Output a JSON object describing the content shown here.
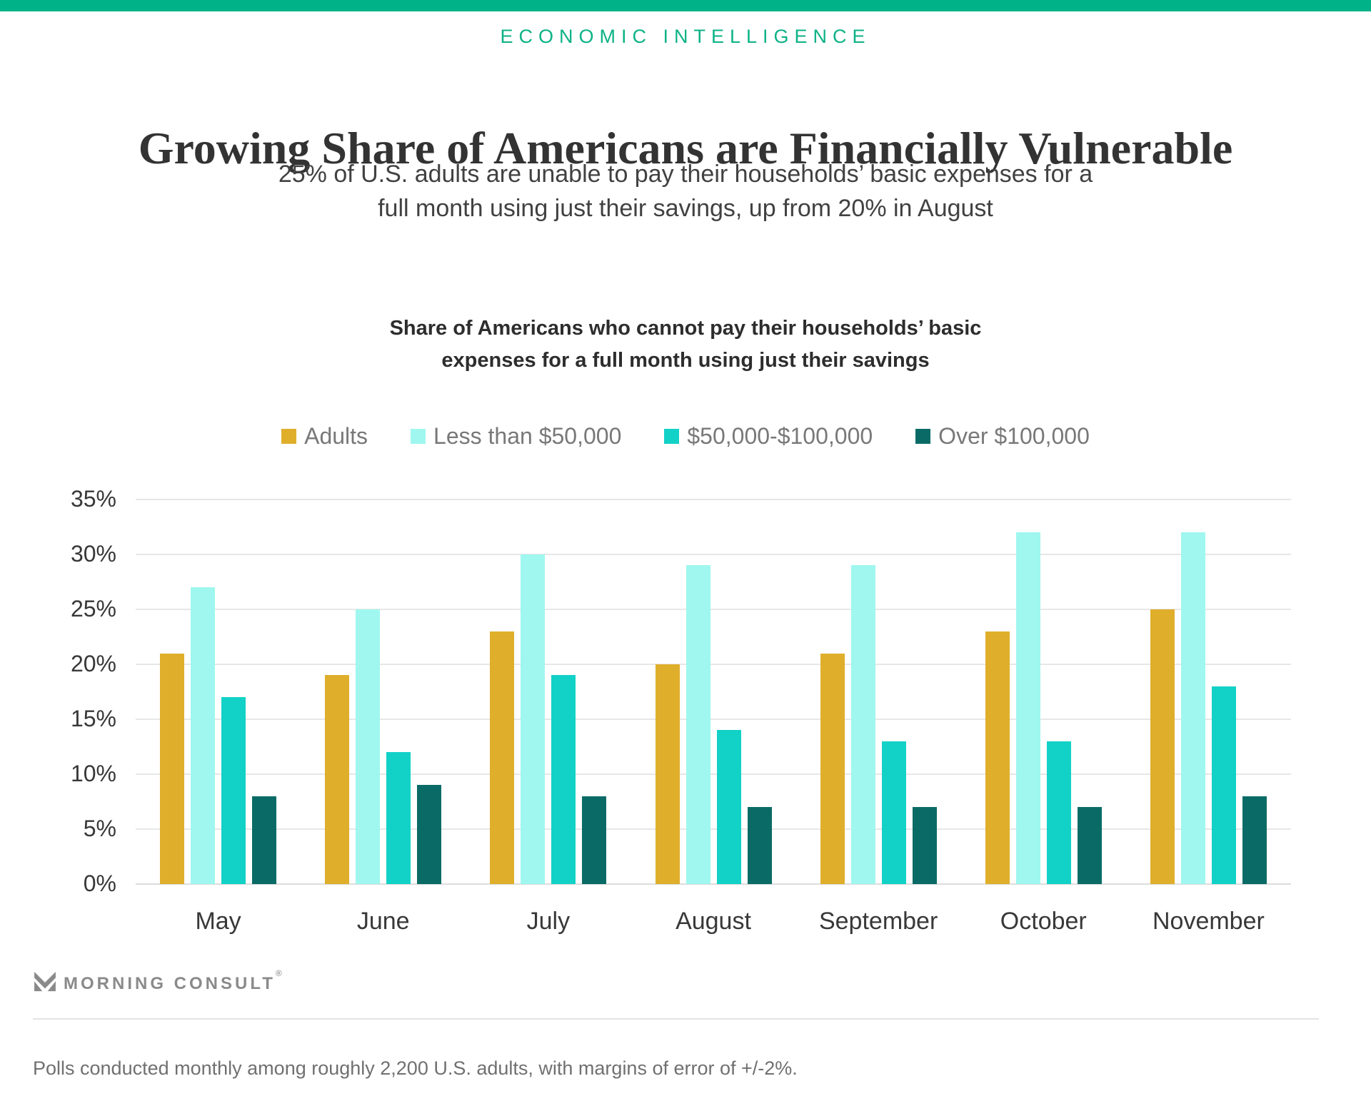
{
  "header": {
    "eyebrow": "ECONOMIC INTELLIGENCE",
    "title": "Growing Share of Americans are Financially Vulnerable",
    "subtitle_lines": [
      "25% of U.S. adults are unable to pay their households’ basic expenses for a",
      "full month using just their savings, up from 20% in August"
    ]
  },
  "chart_data": {
    "type": "bar",
    "title": "Share of Americans who cannot pay their households’ basic expenses for a full month using just their savings",
    "title_lines": [
      "Share of Americans who cannot pay their households’ basic",
      "expenses for a full month using just their savings"
    ],
    "categories": [
      "May",
      "June",
      "July",
      "August",
      "September",
      "October",
      "November"
    ],
    "series": [
      {
        "name": "Adults",
        "color": "#DFAE2B",
        "values": [
          21,
          19,
          23,
          20,
          21,
          23,
          25
        ]
      },
      {
        "name": "Less than $50,000",
        "color": "#9FF7EF",
        "values": [
          27,
          25,
          30,
          29,
          29,
          32,
          32
        ]
      },
      {
        "name": "$50,000-$100,000",
        "color": "#12D1C7",
        "values": [
          17,
          12,
          19,
          14,
          13,
          13,
          18
        ]
      },
      {
        "name": "Over $100,000",
        "color": "#0A6B66",
        "values": [
          8,
          9,
          8,
          7,
          7,
          7,
          8
        ]
      }
    ],
    "y_ticks": [
      "0%",
      "5%",
      "10%",
      "15%",
      "20%",
      "25%",
      "30%",
      "35%"
    ],
    "ylim": [
      0,
      35
    ],
    "grid": true,
    "legend_position": "top",
    "xlabel": "",
    "ylabel": ""
  },
  "footer": {
    "brand": "MORNING CONSULT",
    "reg": "®",
    "footnote": "Polls conducted monthly among roughly 2,200 U.S. adults, with margins of error of +/-2%."
  },
  "colors": {
    "accent_green": "#00B287",
    "eyebrow_green": "#0CB286",
    "title_text": "#333333",
    "gridline": "#E7E7E7",
    "legend_text": "#787878",
    "footer_gray": "#8A8A8A"
  }
}
